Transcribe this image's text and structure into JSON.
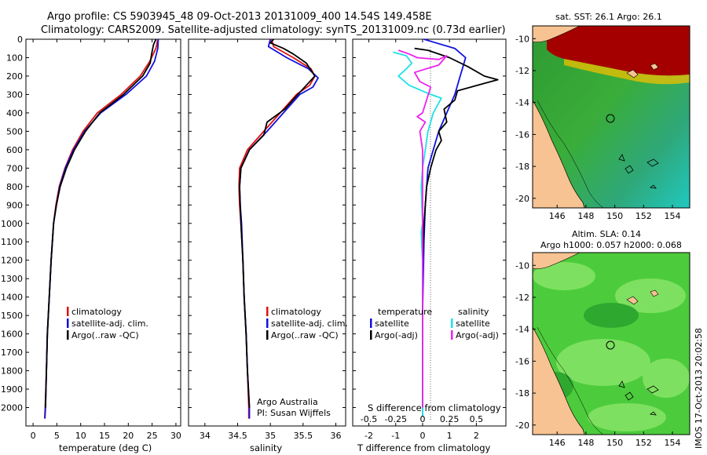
{
  "header": {
    "line1": "Argo profile: CS 5903945_48 09-Oct-2013 20131009_400 14.54S 149.458E",
    "line2": "Climatology: CARS2009. Satellite-adjusted climatology: synTS_20131009.nc (0.73d earlier)"
  },
  "side_label": "IMOS 17-Oct-2013 20:02:58",
  "colors": {
    "red": "#e01010",
    "blue": "#1010e0",
    "black": "#000000",
    "cyan": "#20e0e8",
    "magenta": "#ee22ee",
    "land": "#f7c392"
  },
  "chart_data": [
    {
      "id": "temperature",
      "type": "line",
      "xlabel": "temperature (deg C)",
      "xlim": [
        -1.5,
        31
      ],
      "ylim": [
        2100,
        0
      ],
      "xticks": [
        0,
        5,
        10,
        15,
        20,
        25,
        30
      ],
      "yticks": [
        0,
        100,
        200,
        300,
        400,
        500,
        600,
        700,
        800,
        900,
        1000,
        1100,
        1200,
        1300,
        1400,
        1500,
        1600,
        1700,
        1800,
        1900,
        2000
      ],
      "legend": [
        "climatology",
        "satellite-adj. clim.",
        "Argo(..raw -QC)"
      ],
      "series": [
        {
          "name": "climatology",
          "color": "red",
          "points": [
            [
              26.2,
              0
            ],
            [
              25.8,
              50
            ],
            [
              24.5,
              120
            ],
            [
              22.5,
              200
            ],
            [
              18.5,
              300
            ],
            [
              13.5,
              400
            ],
            [
              10.5,
              500
            ],
            [
              8.3,
              600
            ],
            [
              6.7,
              700
            ],
            [
              5.5,
              800
            ],
            [
              4.8,
              900
            ],
            [
              4.3,
              1000
            ],
            [
              3.8,
              1200
            ],
            [
              3.4,
              1400
            ],
            [
              3.0,
              1600
            ],
            [
              2.8,
              1800
            ],
            [
              2.55,
              2000
            ],
            [
              2.45,
              2060
            ]
          ]
        },
        {
          "name": "satellite-adj. clim.",
          "color": "blue",
          "points": [
            [
              26.3,
              0
            ],
            [
              26.2,
              50
            ],
            [
              25.5,
              120
            ],
            [
              23.8,
              200
            ],
            [
              19.5,
              300
            ],
            [
              14.2,
              400
            ],
            [
              10.8,
              500
            ],
            [
              8.5,
              600
            ],
            [
              6.8,
              700
            ],
            [
              5.6,
              800
            ],
            [
              4.9,
              900
            ],
            [
              4.3,
              1000
            ],
            [
              3.8,
              1200
            ],
            [
              3.4,
              1400
            ],
            [
              3.0,
              1600
            ],
            [
              2.8,
              1800
            ],
            [
              2.6,
              2000
            ],
            [
              2.5,
              2060
            ]
          ]
        },
        {
          "name": "Argo(..raw -QC)",
          "color": "black",
          "points": [
            [
              25.8,
              0
            ],
            [
              25.3,
              30
            ],
            [
              24.9,
              80
            ],
            [
              24.6,
              130
            ],
            [
              23.0,
              200
            ],
            [
              19.0,
              300
            ],
            [
              14.0,
              400
            ],
            [
              11.0,
              500
            ],
            [
              8.7,
              600
            ],
            [
              7.0,
              700
            ],
            [
              5.7,
              800
            ],
            [
              4.9,
              900
            ],
            [
              4.3,
              1000
            ],
            [
              3.8,
              1200
            ],
            [
              3.4,
              1400
            ],
            [
              3.0,
              1600
            ],
            [
              2.8,
              1800
            ],
            [
              2.6,
              2000
            ]
          ]
        }
      ]
    },
    {
      "id": "salinity",
      "type": "line",
      "xlabel": "salinity",
      "xlim": [
        33.75,
        36.15
      ],
      "ylim": [
        2100,
        0
      ],
      "xticks": [
        34,
        34.5,
        35,
        35.5,
        36
      ],
      "legend": [
        "climatology",
        "satellite-adj. clim.",
        "Argo(..raw -QC)"
      ],
      "annotation": [
        "Argo Australia",
        "PI: Susan Wijffels"
      ],
      "series": [
        {
          "name": "climatology",
          "color": "red",
          "points": [
            [
              35.02,
              0
            ],
            [
              35.05,
              40
            ],
            [
              35.35,
              100
            ],
            [
              35.62,
              160
            ],
            [
              35.68,
              200
            ],
            [
              35.6,
              250
            ],
            [
              35.4,
              300
            ],
            [
              35.15,
              400
            ],
            [
              34.9,
              500
            ],
            [
              34.65,
              600
            ],
            [
              34.53,
              700
            ],
            [
              34.52,
              800
            ],
            [
              34.53,
              900
            ],
            [
              34.55,
              1000
            ],
            [
              34.58,
              1200
            ],
            [
              34.6,
              1400
            ],
            [
              34.63,
              1600
            ],
            [
              34.65,
              1800
            ],
            [
              34.67,
              2000
            ],
            [
              34.67,
              2060
            ]
          ]
        },
        {
          "name": "satellite-adj. clim.",
          "color": "blue",
          "points": [
            [
              35.0,
              0
            ],
            [
              34.97,
              40
            ],
            [
              35.25,
              100
            ],
            [
              35.58,
              160
            ],
            [
              35.73,
              210
            ],
            [
              35.65,
              260
            ],
            [
              35.45,
              300
            ],
            [
              35.2,
              400
            ],
            [
              34.95,
              500
            ],
            [
              34.68,
              600
            ],
            [
              34.55,
              700
            ],
            [
              34.53,
              800
            ],
            [
              34.54,
              900
            ],
            [
              34.56,
              1000
            ],
            [
              34.58,
              1200
            ],
            [
              34.6,
              1400
            ],
            [
              34.63,
              1600
            ],
            [
              34.65,
              1800
            ],
            [
              34.68,
              2000
            ],
            [
              34.68,
              2060
            ]
          ]
        },
        {
          "name": "Argo(..raw -QC)",
          "color": "black",
          "points": [
            [
              35.05,
              0
            ],
            [
              35.0,
              20
            ],
            [
              35.2,
              50
            ],
            [
              35.35,
              80
            ],
            [
              35.55,
              130
            ],
            [
              35.68,
              200
            ],
            [
              35.55,
              250
            ],
            [
              35.42,
              300
            ],
            [
              35.22,
              380
            ],
            [
              34.95,
              450
            ],
            [
              34.9,
              520
            ],
            [
              34.68,
              600
            ],
            [
              34.55,
              700
            ],
            [
              34.53,
              800
            ],
            [
              34.54,
              900
            ],
            [
              34.55,
              1000
            ],
            [
              34.58,
              1200
            ],
            [
              34.6,
              1400
            ],
            [
              34.63,
              1600
            ],
            [
              34.65,
              1800
            ],
            [
              34.68,
              2000
            ]
          ]
        }
      ]
    },
    {
      "id": "difference",
      "type": "line",
      "xlabel": "T difference from climatology",
      "xlabel_top": "S difference from climatology",
      "xlim": [
        -2.6,
        3.1
      ],
      "ylim": [
        2100,
        0
      ],
      "xticks": [
        -2,
        -1,
        0,
        1,
        2
      ],
      "xticks_s": [
        "-0.5",
        "-0.25",
        "0",
        "0.25",
        "0.5"
      ],
      "xticks_s_pos": [
        -2,
        -1,
        0,
        1,
        2
      ],
      "legend_t_title": "temperature",
      "legend_s_title": "salinity",
      "legend_t": [
        "satellite",
        "Argo(-adj)"
      ],
      "legend_s": [
        "satellite",
        "Argo(-adj)"
      ],
      "series": [
        {
          "name": "T satellite",
          "color": "blue",
          "points": [
            [
              0.05,
              0
            ],
            [
              0.5,
              20
            ],
            [
              1.2,
              50
            ],
            [
              1.6,
              100
            ],
            [
              1.5,
              150
            ],
            [
              1.4,
              200
            ],
            [
              1.2,
              300
            ],
            [
              0.9,
              400
            ],
            [
              0.6,
              500
            ],
            [
              0.4,
              600
            ],
            [
              0.2,
              700
            ],
            [
              0.1,
              900
            ],
            [
              0.05,
              1100
            ],
            [
              0,
              1500
            ],
            [
              0,
              2050
            ]
          ]
        },
        {
          "name": "T Argo(-adj)",
          "color": "black",
          "points": [
            [
              -0.3,
              50
            ],
            [
              0.2,
              60
            ],
            [
              1.0,
              100
            ],
            [
              1.7,
              150
            ],
            [
              2.3,
              200
            ],
            [
              2.8,
              220
            ],
            [
              2.3,
              240
            ],
            [
              1.3,
              280
            ],
            [
              1.2,
              330
            ],
            [
              0.8,
              380
            ],
            [
              0.9,
              450
            ],
            [
              0.6,
              500
            ],
            [
              0.7,
              550
            ],
            [
              0.5,
              600
            ],
            [
              0.4,
              650
            ],
            [
              0.3,
              700
            ],
            [
              0.15,
              800
            ],
            [
              0.1,
              900
            ],
            [
              0.05,
              1000
            ],
            [
              0,
              1200
            ],
            [
              0,
              2000
            ]
          ]
        },
        {
          "name": "S satellite",
          "color": "cyan",
          "points": [
            [
              -1.1,
              70
            ],
            [
              -0.6,
              90
            ],
            [
              -0.4,
              130
            ],
            [
              -0.6,
              160
            ],
            [
              -0.9,
              200
            ],
            [
              -0.5,
              250
            ],
            [
              0.3,
              300
            ],
            [
              0.7,
              320
            ],
            [
              0.4,
              400
            ],
            [
              0.2,
              500
            ],
            [
              0.1,
              600
            ],
            [
              0,
              700
            ],
            [
              -0.05,
              800
            ],
            [
              0,
              1000
            ],
            [
              -0.05,
              1050
            ],
            [
              0,
              1200
            ],
            [
              0,
              2050
            ]
          ]
        },
        {
          "name": "S Argo(-adj)",
          "color": "magenta",
          "points": [
            [
              -0.9,
              60
            ],
            [
              -0.5,
              80
            ],
            [
              -0.2,
              100
            ],
            [
              0.6,
              110
            ],
            [
              0.9,
              90
            ],
            [
              0.6,
              140
            ],
            [
              -0.3,
              180
            ],
            [
              -0.1,
              230
            ],
            [
              0.3,
              260
            ],
            [
              0.0,
              400
            ],
            [
              -0.2,
              420
            ],
            [
              0.1,
              450
            ],
            [
              -0.1,
              500
            ],
            [
              0.0,
              600
            ],
            [
              0,
              800
            ],
            [
              0,
              1000
            ],
            [
              0,
              2000
            ]
          ]
        }
      ]
    },
    {
      "id": "sst_map",
      "type": "heatmap",
      "title": "sat. SST: 26.1  Argo: 26.1",
      "xticks": [
        146,
        148,
        150,
        152,
        154
      ],
      "yticks": [
        -10,
        -12,
        -14,
        -16,
        -18,
        -20
      ],
      "xlim": [
        144.3,
        155.2
      ],
      "ylim": [
        -20.6,
        -9.2
      ],
      "argo_location": [
        149.458,
        -14.54
      ]
    },
    {
      "id": "sla_map",
      "type": "heatmap",
      "title": "Altim. SLA: 0.14",
      "subtitle": "Argo h1000: 0.057  h2000: 0.068",
      "xticks": [
        146,
        148,
        150,
        152,
        154
      ],
      "yticks": [
        -10,
        -12,
        -14,
        -16,
        -18,
        -20
      ],
      "xlim": [
        144.3,
        155.2
      ],
      "ylim": [
        -20.6,
        -9.2
      ],
      "argo_location": [
        149.458,
        -14.54
      ]
    }
  ]
}
